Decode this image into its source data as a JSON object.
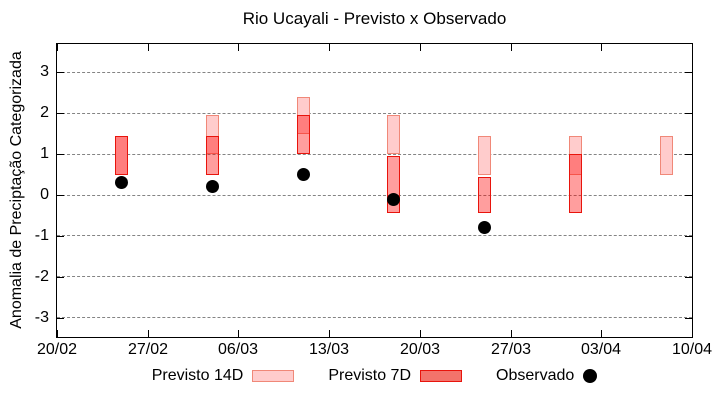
{
  "chart_data": {
    "type": "bar",
    "subtype": "range-bars-with-scatter",
    "title": "Rio Ucayali - Previsto x Observado",
    "ylabel": "Anomalia de Preciptação Categorizada",
    "xlabel": "",
    "grid": true,
    "legend_position": "below",
    "ylim": [
      -3.47,
      3.69
    ],
    "ytick_labels": [
      "3",
      "2",
      "1",
      "0",
      "-1",
      "-2",
      "-3"
    ],
    "ytick_values": [
      3,
      2,
      1,
      0,
      -1,
      -2,
      -3
    ],
    "x_axis": {
      "tick_labels": [
        "20/02",
        "27/02",
        "06/03",
        "13/03",
        "20/03",
        "27/03",
        "03/04",
        "10/04"
      ],
      "tick_days": [
        0,
        7,
        14,
        21,
        28,
        35,
        42,
        49
      ],
      "span_days": 49
    },
    "categories": [
      "25/02",
      "04/03",
      "11/03",
      "18/03",
      "25/03",
      "01/04",
      "08/04"
    ],
    "series": [
      {
        "name": "Previsto 14D",
        "type": "range-bar",
        "data": [
          {
            "date": "25/02",
            "day": 5,
            "low": 0.5,
            "high": 1.45
          },
          {
            "date": "04/03",
            "day": 12,
            "low": 1.0,
            "high": 1.95
          },
          {
            "date": "11/03",
            "day": 19,
            "low": 1.5,
            "high": 2.4
          },
          {
            "date": "18/03",
            "day": 26,
            "low": 1.0,
            "high": 1.95
          },
          {
            "date": "25/03",
            "day": 33,
            "low": 0.5,
            "high": 1.45
          },
          {
            "date": "01/04",
            "day": 40,
            "low": 0.5,
            "high": 1.45
          },
          {
            "date": "08/04",
            "day": 47,
            "low": 0.5,
            "high": 1.45
          }
        ]
      },
      {
        "name": "Previsto 7D",
        "type": "range-bar",
        "data": [
          {
            "date": "25/02",
            "day": 5,
            "low": 0.5,
            "high": 1.45
          },
          {
            "date": "04/03",
            "day": 12,
            "low": 0.5,
            "high": 1.45
          },
          {
            "date": "11/03",
            "day": 19,
            "low": 1.0,
            "high": 1.95
          },
          {
            "date": "18/03",
            "day": 26,
            "low": -0.45,
            "high": 0.95
          },
          {
            "date": "25/03",
            "day": 33,
            "low": -0.45,
            "high": 0.45
          },
          {
            "date": "01/04",
            "day": 40,
            "low": -0.45,
            "high": 1.0
          }
        ]
      },
      {
        "name": "Observado",
        "type": "scatter",
        "data": [
          {
            "date": "25/02",
            "day": 5,
            "value": 0.3
          },
          {
            "date": "04/03",
            "day": 12,
            "value": 0.2
          },
          {
            "date": "11/03",
            "day": 19,
            "value": 0.5
          },
          {
            "date": "18/03",
            "day": 26,
            "value": -0.1
          },
          {
            "date": "25/03",
            "day": 33,
            "value": -0.8
          }
        ]
      }
    ],
    "colors": {
      "previsto_14d_fill": "#ffcccc",
      "previsto_14d_border": "#f08878",
      "previsto_7d_fill": "rgba(255,0,0,0.38)",
      "previsto_7d_fill_flat": "#ff9999",
      "previsto_overlap_fill": "#ff7a7a",
      "previsto_7d_border": "#e8140c",
      "legend_7d_swatch_fill": "#f3736b",
      "observado": "#000000",
      "grid": "#848484",
      "axis": "#000000"
    }
  }
}
